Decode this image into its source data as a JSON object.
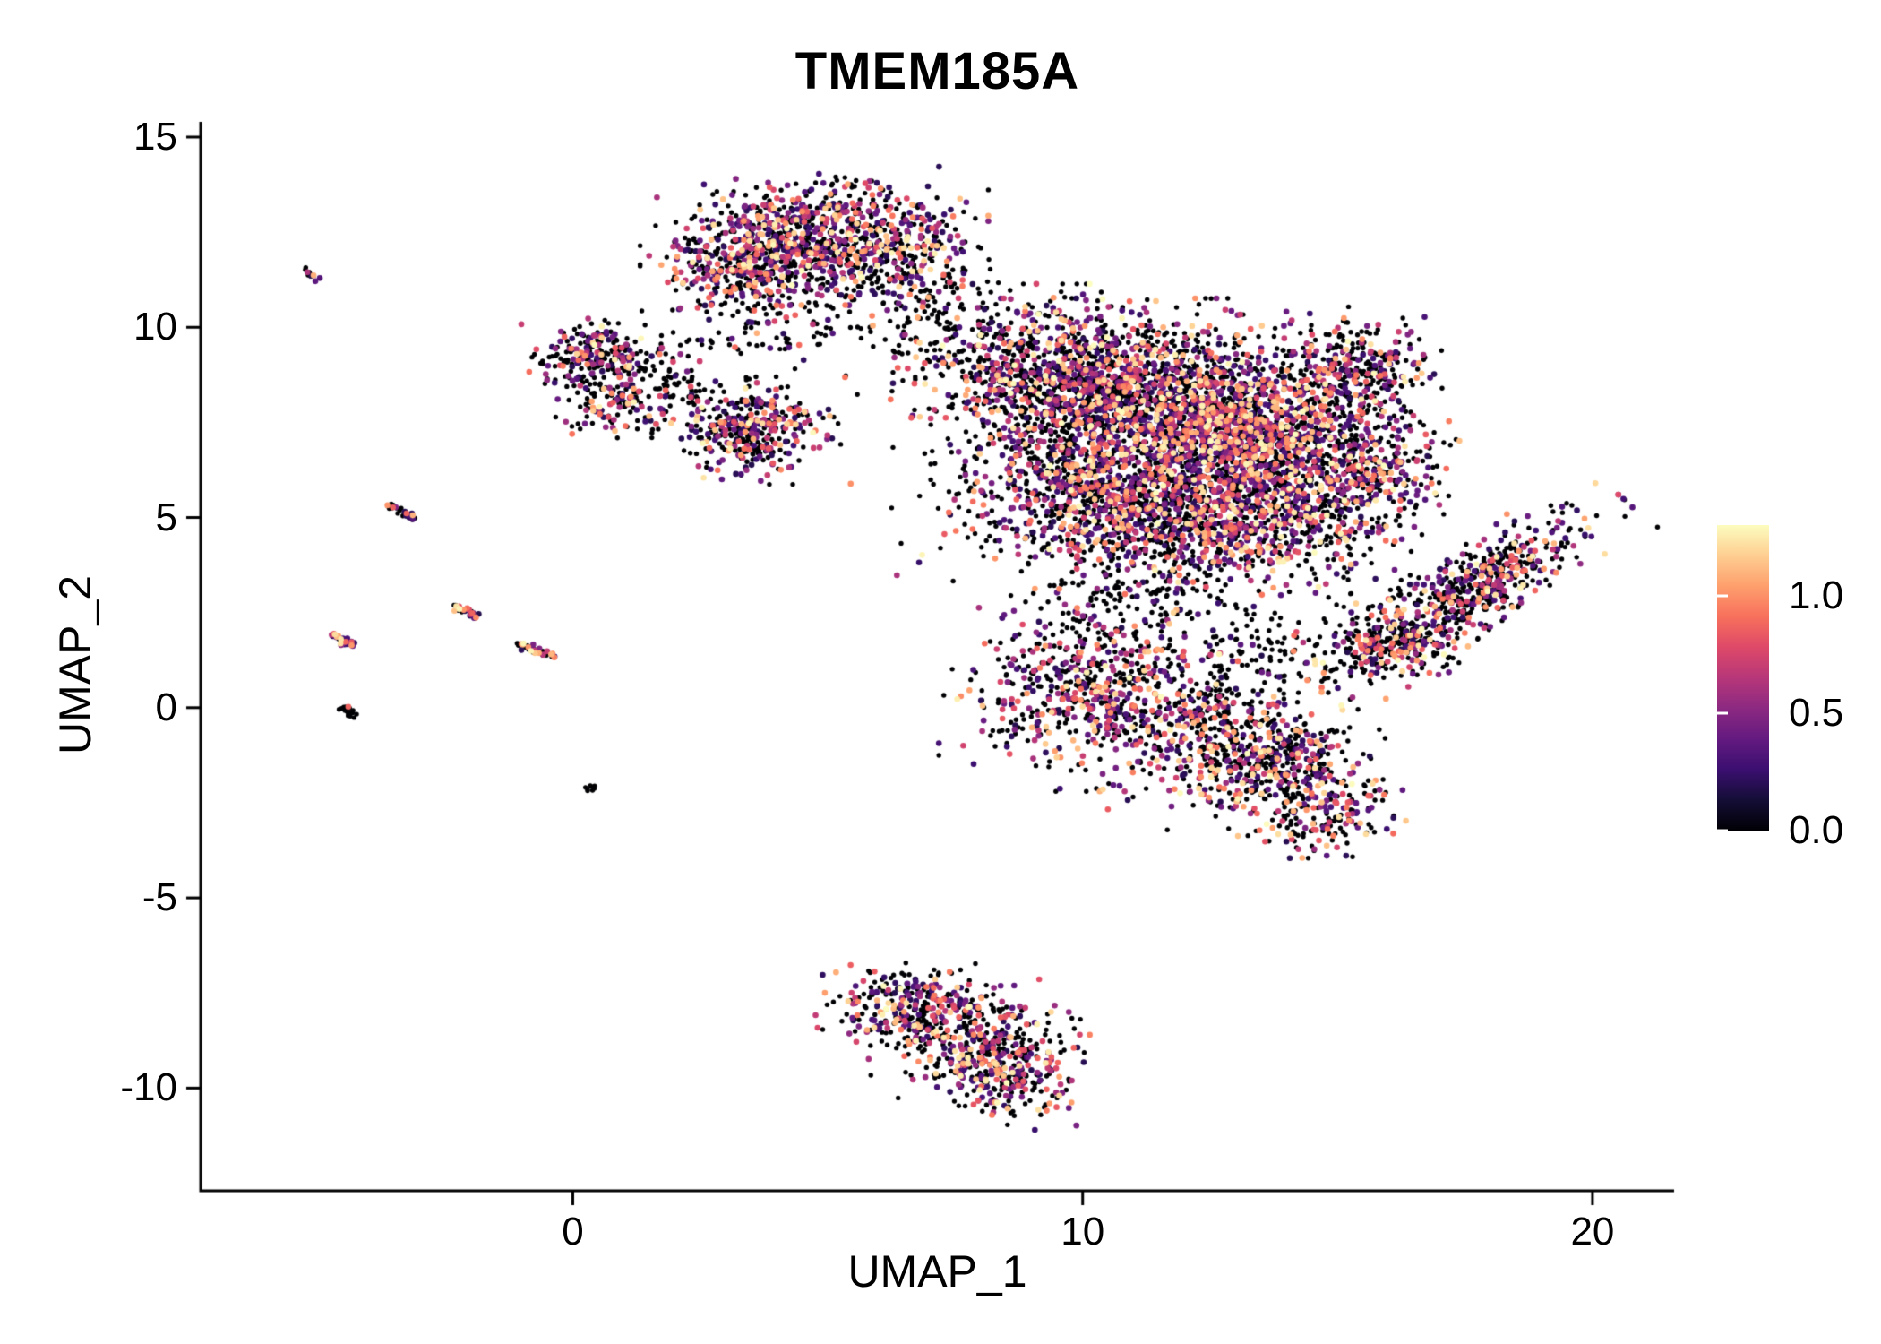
{
  "chart_data": {
    "type": "scatter",
    "title": "TMEM185A",
    "xlabel": "UMAP_1",
    "ylabel": "UMAP_2",
    "xlim": [
      -7.3,
      21.6
    ],
    "ylim": [
      -12.7,
      15.4
    ],
    "grid": false,
    "x_ticks": [
      {
        "value": 0,
        "label": "0"
      },
      {
        "value": 10,
        "label": "10"
      },
      {
        "value": 20,
        "label": "20"
      }
    ],
    "y_ticks": [
      {
        "value": 15,
        "label": "15"
      },
      {
        "value": 10,
        "label": "10"
      },
      {
        "value": 5,
        "label": "5"
      },
      {
        "value": 0,
        "label": "0"
      },
      {
        "value": -5,
        "label": "-5"
      },
      {
        "value": -10,
        "label": "-10"
      }
    ],
    "legend": {
      "type": "colorbar",
      "position": "right",
      "vmin": 0.0,
      "vmax": 1.3,
      "colormap": "magma",
      "ticks": [
        {
          "value": 1.0,
          "label": "1.0"
        },
        {
          "value": 0.5,
          "label": "0.5"
        },
        {
          "value": 0.0,
          "label": "0.0"
        }
      ]
    },
    "colormap_stops": [
      [
        0.0,
        "#000004"
      ],
      [
        0.1,
        "#140e36"
      ],
      [
        0.2,
        "#3b0f70"
      ],
      [
        0.3,
        "#641a80"
      ],
      [
        0.4,
        "#8c2981"
      ],
      [
        0.5,
        "#b73779"
      ],
      [
        0.6,
        "#de4968"
      ],
      [
        0.7,
        "#f7705c"
      ],
      [
        0.8,
        "#fe9f6d"
      ],
      [
        0.9,
        "#fece91"
      ],
      [
        1.0,
        "#fcfdbf"
      ]
    ],
    "point_style": {
      "radius_zero": 2.7,
      "radius_expressed": 3.3
    },
    "seed": 42,
    "clusters": [
      {
        "cx": 4.9,
        "cy": 12.4,
        "sx": 1.25,
        "sy": 0.7,
        "n": 850,
        "zf": 0.5
      },
      {
        "cx": 3.4,
        "cy": 11.6,
        "sx": 0.8,
        "sy": 0.6,
        "n": 300,
        "zf": 0.5
      },
      {
        "cx": 4.3,
        "cy": 10.4,
        "sx": 1.0,
        "sy": 0.8,
        "n": 150,
        "zf": 0.75
      },
      {
        "cx": 6.6,
        "cy": 11.4,
        "sx": 0.7,
        "sy": 0.5,
        "n": 130,
        "zf": 0.6
      },
      {
        "cx": 7.6,
        "cy": 9.9,
        "sx": 0.7,
        "sy": 0.6,
        "n": 90,
        "zf": 0.8
      },
      {
        "cx": 0.55,
        "cy": 9.3,
        "sx": 0.6,
        "sy": 0.4,
        "n": 200,
        "zf": 0.55
      },
      {
        "cx": 0.8,
        "cy": 8.3,
        "sx": 0.65,
        "sy": 0.5,
        "n": 180,
        "zf": 0.6
      },
      {
        "cx": 2.1,
        "cy": 8.6,
        "sx": 0.5,
        "sy": 0.5,
        "n": 60,
        "zf": 0.8
      },
      {
        "cx": 3.5,
        "cy": 7.3,
        "sx": 0.75,
        "sy": 0.55,
        "n": 380,
        "zf": 0.5
      },
      {
        "cx": 9.4,
        "cy": 8.8,
        "sx": 1.2,
        "sy": 0.9,
        "n": 800,
        "zf": 0.55
      },
      {
        "cx": 11.6,
        "cy": 7.9,
        "sx": 1.5,
        "sy": 1.1,
        "n": 1500,
        "zf": 0.5
      },
      {
        "cx": 13.4,
        "cy": 6.9,
        "sx": 1.1,
        "sy": 0.95,
        "n": 1000,
        "zf": 0.42
      },
      {
        "cx": 10.4,
        "cy": 5.6,
        "sx": 1.3,
        "sy": 0.95,
        "n": 850,
        "zf": 0.5
      },
      {
        "cx": 12.4,
        "cy": 4.7,
        "sx": 1.1,
        "sy": 0.8,
        "n": 550,
        "zf": 0.5
      },
      {
        "cx": 15.4,
        "cy": 8.9,
        "sx": 0.75,
        "sy": 0.7,
        "n": 320,
        "zf": 0.55
      },
      {
        "cx": 15.7,
        "cy": 6.4,
        "sx": 0.65,
        "sy": 0.85,
        "n": 300,
        "zf": 0.5
      },
      {
        "cx": 11.3,
        "cy": 6.6,
        "sx": 2.2,
        "sy": 1.6,
        "n": 350,
        "zf": 0.8
      },
      {
        "cx": 14.3,
        "cy": 4.9,
        "sx": 0.9,
        "sy": 0.7,
        "n": 250,
        "zf": 0.55
      },
      {
        "cx": 17.6,
        "cy": 3.0,
        "sx": 1.5,
        "sy": 0.45,
        "angle": 42,
        "n": 650,
        "zf": 0.55
      },
      {
        "cx": 16.0,
        "cy": 1.6,
        "sx": 0.6,
        "sy": 0.4,
        "n": 120,
        "zf": 0.6
      },
      {
        "cx": 15.3,
        "cy": 2.0,
        "sx": 0.8,
        "sy": 0.6,
        "n": 80,
        "zf": 0.8
      },
      {
        "cx": 10.3,
        "cy": 0.4,
        "sx": 1.2,
        "sy": 1.0,
        "n": 620,
        "zf": 0.5
      },
      {
        "cx": 10.6,
        "cy": 2.6,
        "sx": 1.0,
        "sy": 0.8,
        "n": 150,
        "zf": 0.8
      },
      {
        "cx": 13.3,
        "cy": 1.2,
        "sx": 0.9,
        "sy": 0.7,
        "n": 130,
        "zf": 0.75
      },
      {
        "cx": 12.8,
        "cy": -0.9,
        "sx": 1.0,
        "sy": 0.7,
        "n": 350,
        "zf": 0.55
      },
      {
        "cx": 14.0,
        "cy": -1.7,
        "sx": 0.9,
        "sy": 0.7,
        "n": 350,
        "zf": 0.5
      },
      {
        "cx": 14.8,
        "cy": -3.0,
        "sx": 0.5,
        "sy": 0.5,
        "n": 130,
        "zf": 0.5
      },
      {
        "cx": 6.7,
        "cy": -7.8,
        "sx": 0.8,
        "sy": 0.45,
        "n": 260,
        "zf": 0.5
      },
      {
        "cx": 7.9,
        "cy": -8.7,
        "sx": 0.9,
        "sy": 0.6,
        "n": 330,
        "zf": 0.45
      },
      {
        "cx": 8.6,
        "cy": -9.8,
        "sx": 0.55,
        "sy": 0.5,
        "n": 200,
        "zf": 0.45
      },
      {
        "type": "streak",
        "cx": -5.15,
        "cy": 11.4,
        "len": 0.22,
        "angle": -38,
        "n": 12,
        "zf": 0.7
      },
      {
        "type": "streak",
        "cx": -3.35,
        "cy": 5.15,
        "len": 0.35,
        "angle": -35,
        "n": 30,
        "zf": 0.5
      },
      {
        "type": "streak",
        "cx": -4.55,
        "cy": 1.8,
        "len": 0.3,
        "angle": -35,
        "n": 30,
        "zf": 0.2
      },
      {
        "type": "streak",
        "cx": -2.1,
        "cy": 2.55,
        "len": 0.3,
        "angle": -35,
        "n": 25,
        "zf": 0.4
      },
      {
        "type": "streak",
        "cx": -0.7,
        "cy": 1.5,
        "len": 0.45,
        "angle": -28,
        "n": 40,
        "zf": 0.55
      },
      {
        "type": "streak",
        "cx": -4.4,
        "cy": -0.1,
        "len": 0.22,
        "angle": -35,
        "n": 18,
        "zf": 0.8
      },
      {
        "type": "streak",
        "cx": 0.35,
        "cy": -2.1,
        "len": 0.1,
        "angle": -30,
        "n": 8,
        "zf": 0.85
      }
    ]
  }
}
